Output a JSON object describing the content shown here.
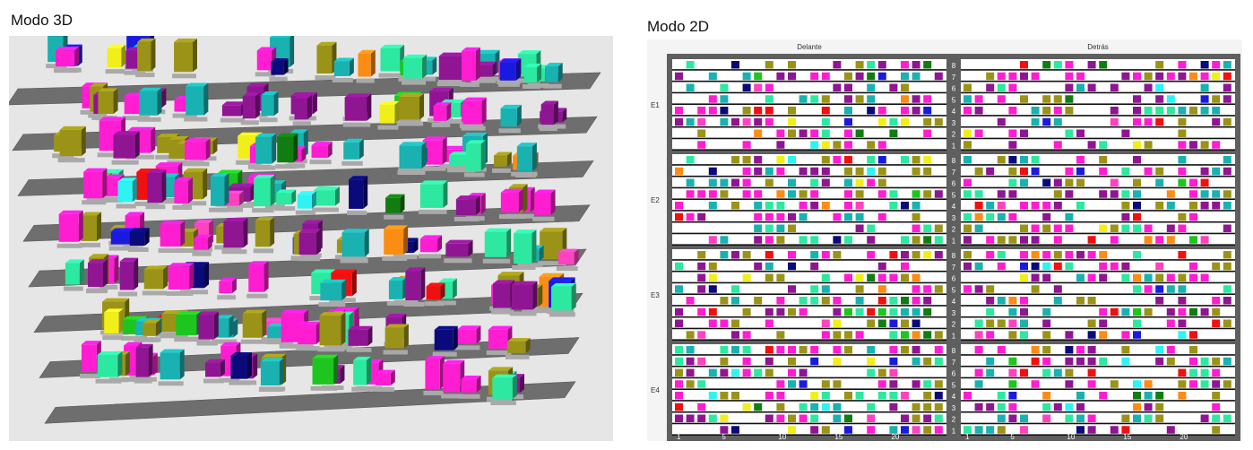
{
  "titles": {
    "view3d": "Modo 3D",
    "view2d": "Modo 2D"
  },
  "view2d": {
    "headers": {
      "front": "Delante",
      "back": "Detrás"
    },
    "sections": [
      "E1",
      "E2",
      "E3",
      "E4"
    ],
    "shelf_numbers": [
      "8",
      "7",
      "6",
      "5",
      "4",
      "3",
      "2",
      "1"
    ],
    "axis_front": [
      "1",
      "5",
      "10",
      "15",
      "20"
    ],
    "axis_back": [
      "1",
      "5",
      "10",
      "15",
      "20"
    ]
  },
  "palette": {
    "magenta": "#ff1dd1",
    "purple": "#8f1593",
    "olive": "#9a9318",
    "teal": "#1ab1b1",
    "red": "#f01010",
    "green": "#1ec51e",
    "darkgreen": "#117d11",
    "cyan": "#2ff3f3",
    "blue": "#1a1ade",
    "navy": "#0a0a7a",
    "yellow": "#f1ef1a",
    "orange": "#fb8c14",
    "mint": "#2de8a0",
    "pink": "#ff42bf",
    "shelf": "#7d7d7d",
    "frame": "#5f5f5f",
    "background3d": "#e6e6e6"
  }
}
